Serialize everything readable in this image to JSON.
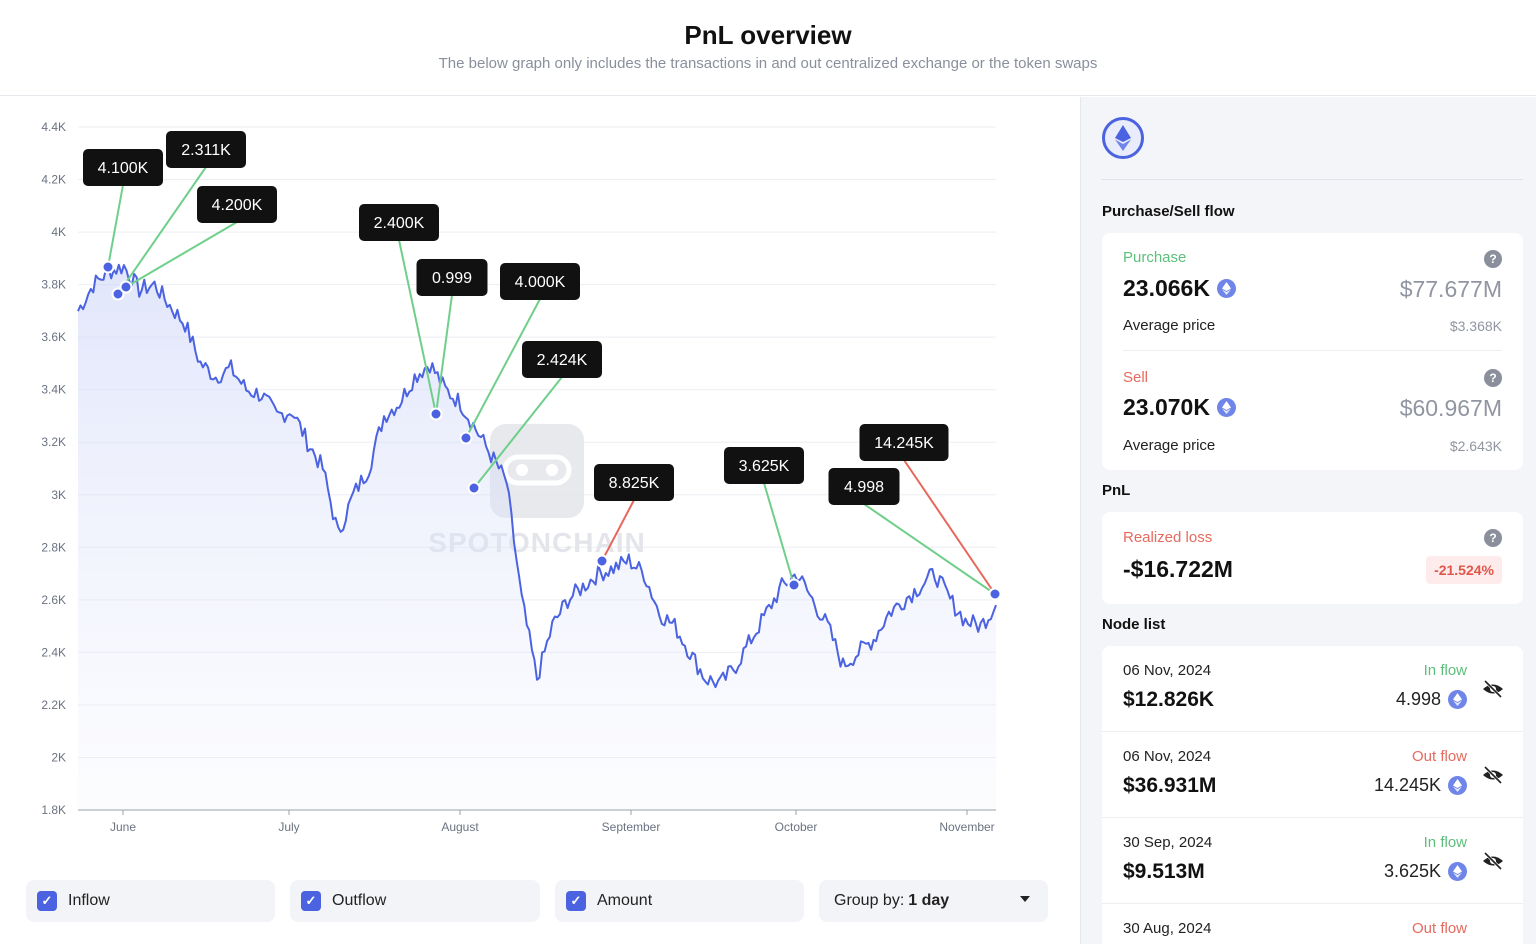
{
  "header": {
    "title": "PnL overview",
    "subtitle": "The below graph only includes the transactions in and out centralized exchange or the token swaps"
  },
  "watermark": "SPOTONCHAIN",
  "chart_data": {
    "type": "line",
    "y_ticks": [
      "4.4K",
      "4.2K",
      "4K",
      "3.8K",
      "3.6K",
      "3.4K",
      "3.2K",
      "3K",
      "2.8K",
      "2.6K",
      "2.4K",
      "2.2K",
      "2K",
      "1.8K"
    ],
    "x_ticks": [
      "June",
      "July",
      "August",
      "September",
      "October",
      "November"
    ],
    "ylim": [
      1800,
      4400
    ],
    "series": [
      {
        "values": [
          3700,
          3800,
          3850,
          3870,
          3780,
          3800,
          3720,
          3650,
          3500,
          3450,
          3480,
          3400,
          3380,
          3300,
          3320,
          3200,
          3100,
          2850,
          3000,
          3100,
          3300,
          3350,
          3450,
          3500,
          3400,
          3350,
          3250,
          3150,
          3050,
          2600,
          2300,
          2500,
          2600,
          2650,
          2700,
          2720,
          2750,
          2700,
          2550,
          2500,
          2400,
          2300,
          2280,
          2350,
          2450,
          2550,
          2650,
          2700,
          2600,
          2500,
          2350,
          2400,
          2450,
          2550,
          2600,
          2650,
          2700,
          2600,
          2520,
          2500,
          2580
        ]
      }
    ],
    "annotations": [
      {
        "label": "4.100K",
        "flow": "in"
      },
      {
        "label": "2.311K",
        "flow": "in"
      },
      {
        "label": "4.200K",
        "flow": "in"
      },
      {
        "label": "2.400K",
        "flow": "in"
      },
      {
        "label": "0.999",
        "flow": "in"
      },
      {
        "label": "4.000K",
        "flow": "in"
      },
      {
        "label": "2.424K",
        "flow": "in"
      },
      {
        "label": "8.825K",
        "flow": "out"
      },
      {
        "label": "3.625K",
        "flow": "in"
      },
      {
        "label": "4.998",
        "flow": "in"
      },
      {
        "label": "14.245K",
        "flow": "out"
      }
    ],
    "colors": {
      "line": "#4b63e0",
      "inflow": "#6fcf8a",
      "outflow": "#e8675c"
    }
  },
  "controls": {
    "inflow": "Inflow",
    "outflow": "Outflow",
    "amount": "Amount",
    "group_prefix": "Group by:",
    "group_value": "1 day"
  },
  "side": {
    "purchase_sell_title": "Purchase/Sell flow",
    "purchase": {
      "label": "Purchase",
      "amount": "23.066K",
      "usd": "$77.677M",
      "avg_label": "Average price",
      "avg_value": "$3.368K"
    },
    "sell": {
      "label": "Sell",
      "amount": "23.070K",
      "usd": "$60.967M",
      "avg_label": "Average price",
      "avg_value": "$2.643K"
    },
    "pnl_title": "PnL",
    "pnl": {
      "label": "Realized loss",
      "value": "-$16.722M",
      "pct": "-21.524%"
    },
    "node_list_title": "Node list",
    "nodes": [
      {
        "date": "06 Nov, 2024",
        "value": "$12.826K",
        "flow": "In flow",
        "amount": "4.998"
      },
      {
        "date": "06 Nov, 2024",
        "value": "$36.931M",
        "flow": "Out flow",
        "amount": "14.245K"
      },
      {
        "date": "30 Sep, 2024",
        "value": "$9.513M",
        "flow": "In flow",
        "amount": "3.625K"
      },
      {
        "date": "30 Aug, 2024",
        "value": "",
        "flow": "Out flow",
        "amount": ""
      }
    ]
  }
}
